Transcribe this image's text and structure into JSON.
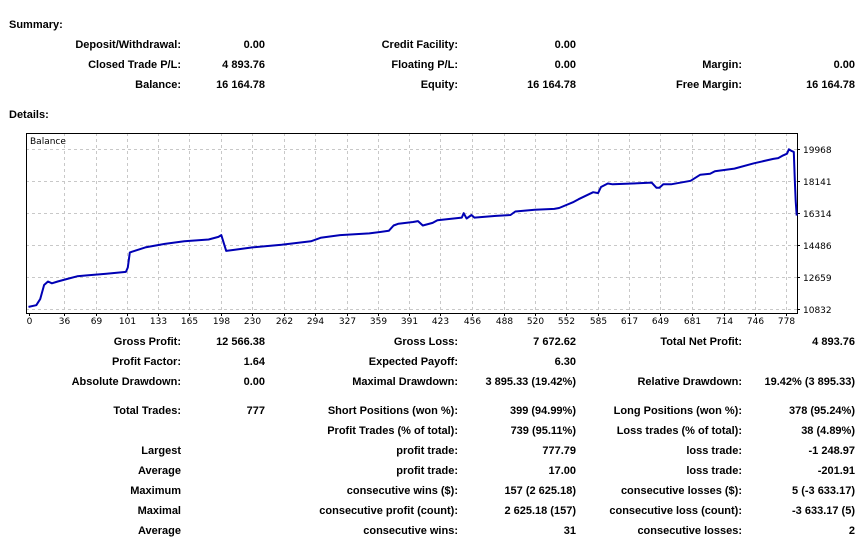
{
  "summary": {
    "heading": "Summary:",
    "rows": [
      [
        [
          "Deposit/Withdrawal:",
          "0.00"
        ],
        [
          "Credit Facility:",
          "0.00"
        ],
        [
          "",
          ""
        ]
      ],
      [
        [
          "Closed Trade P/L:",
          "4 893.76"
        ],
        [
          "Floating P/L:",
          "0.00"
        ],
        [
          "Margin:",
          "0.00"
        ]
      ],
      [
        [
          "Balance:",
          "16 164.78"
        ],
        [
          "Equity:",
          "16 164.78"
        ],
        [
          "Free Margin:",
          "16 164.78"
        ]
      ]
    ]
  },
  "details": {
    "heading": "Details:",
    "rows": [
      [
        [
          "Gross Profit:",
          "12 566.38"
        ],
        [
          "Gross Loss:",
          "7 672.62"
        ],
        [
          "Total Net Profit:",
          "4 893.76"
        ]
      ],
      [
        [
          "Profit Factor:",
          "1.64"
        ],
        [
          "Expected Payoff:",
          "6.30"
        ],
        [
          "",
          ""
        ]
      ],
      [
        [
          "Absolute Drawdown:",
          "0.00"
        ],
        [
          "Maximal Drawdown:",
          "3 895.33 (19.42%)"
        ],
        [
          "Relative Drawdown:",
          "19.42% (3 895.33)"
        ]
      ],
      [
        [
          "Total Trades:",
          "777"
        ],
        [
          "Short Positions (won %):",
          "399 (94.99%)"
        ],
        [
          "Long Positions (won %):",
          "378 (95.24%)"
        ]
      ],
      [
        [
          "",
          ""
        ],
        [
          "Profit Trades (% of total):",
          "739 (95.11%)"
        ],
        [
          "Loss trades (% of total):",
          "38 (4.89%)"
        ]
      ],
      [
        [
          "Largest",
          ""
        ],
        [
          "profit trade:",
          "777.79"
        ],
        [
          "loss trade:",
          "-1 248.97"
        ]
      ],
      [
        [
          "Average",
          ""
        ],
        [
          "profit trade:",
          "17.00"
        ],
        [
          "loss trade:",
          "-201.91"
        ]
      ],
      [
        [
          "Maximum",
          ""
        ],
        [
          "consecutive wins ($):",
          "157 (2 625.18)"
        ],
        [
          "consecutive losses ($):",
          "5 (-3 633.17)"
        ]
      ],
      [
        [
          "Maximal",
          ""
        ],
        [
          "consecutive profit (count):",
          "2 625.18 (157)"
        ],
        [
          "consecutive loss (count):",
          "-3 633.17 (5)"
        ]
      ],
      [
        [
          "Average",
          ""
        ],
        [
          "consecutive wins:",
          "31"
        ],
        [
          "consecutive losses:",
          "2"
        ]
      ]
    ]
  },
  "chart_data": {
    "type": "line",
    "title": "Balance",
    "x_ticks": [
      0,
      36,
      69,
      101,
      133,
      165,
      198,
      230,
      262,
      294,
      327,
      359,
      391,
      423,
      456,
      488,
      520,
      552,
      585,
      617,
      649,
      681,
      714,
      746,
      778
    ],
    "y_ticks": [
      10832,
      12659,
      14486,
      16314,
      18141,
      19968
    ],
    "grid": true,
    "line_color": "#0000b4",
    "series": [
      {
        "x": [
          0,
          8,
          12,
          16,
          20,
          24,
          30,
          40,
          50,
          60,
          80,
          100,
          102,
          104,
          106,
          120,
          140,
          160,
          185,
          195,
          198,
          203,
          210,
          230,
          260,
          290,
          300,
          320,
          350,
          370,
          375,
          380,
          395,
          400,
          405,
          415,
          420,
          445,
          447,
          450,
          455,
          458,
          480,
          495,
          500,
          520,
          540,
          545,
          560,
          565,
          580,
          585,
          588,
          595,
          600,
          620,
          640,
          645,
          648,
          652,
          660,
          680,
          690,
          700,
          705,
          725,
          745,
          765,
          770,
          775,
          779,
          781,
          784,
          786,
          787,
          788,
          789
        ],
        "y": [
          10950,
          11050,
          11400,
          12200,
          12400,
          12300,
          12400,
          12550,
          12700,
          12750,
          12850,
          12950,
          13200,
          14050,
          14100,
          14350,
          14550,
          14700,
          14800,
          14950,
          15050,
          14150,
          14200,
          14350,
          14500,
          14700,
          14900,
          15050,
          15150,
          15300,
          15600,
          15700,
          15800,
          15850,
          15600,
          15750,
          15900,
          16050,
          16300,
          16000,
          16200,
          16050,
          16150,
          16200,
          16400,
          16500,
          16550,
          16600,
          16950,
          17100,
          17500,
          17450,
          17800,
          18000,
          17950,
          18000,
          18050,
          17750,
          17750,
          17950,
          17950,
          18150,
          18500,
          18550,
          18700,
          18850,
          19150,
          19400,
          19450,
          19600,
          19700,
          19950,
          19850,
          19800,
          18200,
          17000,
          16165
        ]
      }
    ]
  }
}
